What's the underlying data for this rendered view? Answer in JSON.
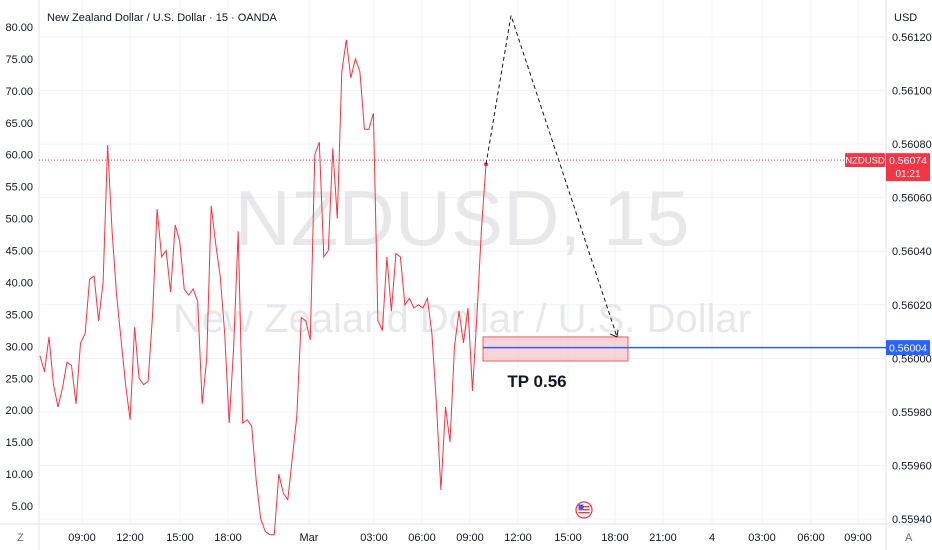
{
  "chart_title": "New Zealand Dollar / U.S. Dollar · 15 · OANDA",
  "currency": "USD",
  "watermark": {
    "symbol": "NZDUSD, 15",
    "name": "New Zealand Dollar / U.S. Dollar"
  },
  "corner_left": "Z",
  "corner_right": "A",
  "colors": {
    "price_line": "#f23645",
    "target_line": "#2962ff",
    "box_fill": "#f7c5cc",
    "grid": "#f0f3fa"
  },
  "last_price": {
    "symbol": "NZDUSD",
    "value": "0.56074",
    "countdown": "01:21",
    "price": 0.56074
  },
  "target": {
    "value": "0.56004",
    "price": 0.56004,
    "label": "TP 0.56"
  },
  "price_axis_labels": [
    "0.56120",
    "0.56100",
    "0.56080",
    "0.56060",
    "0.56040",
    "0.56020",
    "0.56000",
    "0.55980",
    "0.55960",
    "0.55940"
  ],
  "oscillator_axis_labels": [
    "80.00",
    "75.00",
    "70.00",
    "65.00",
    "60.00",
    "55.00",
    "50.00",
    "45.00",
    "40.00",
    "35.00",
    "30.00",
    "25.00",
    "20.00",
    "15.00",
    "10.00",
    "5.00"
  ],
  "time_labels": [
    "09:00",
    "12:00",
    "15:00",
    "18:00",
    "Mar",
    "03:00",
    "06:00",
    "09:00",
    "12:00",
    "15:00",
    "18:00",
    "21:00",
    "4",
    "03:00",
    "06:00",
    "09:00"
  ],
  "chart_data": {
    "type": "line",
    "series": [
      {
        "values": [
          28.5,
          26.0,
          31.5,
          24.0,
          20.5,
          23.5,
          27.5,
          27.0,
          21.0,
          30.5,
          32.0,
          40.5,
          41.0,
          34.0,
          40.0,
          61.5,
          48.0,
          38.0,
          31.0,
          24.0,
          18.5,
          33.0,
          25.0,
          24.0,
          24.5,
          35.0,
          51.5,
          44.0,
          45.0,
          38.5,
          49.0,
          46.5,
          39.0,
          38.0,
          39.0,
          37.0,
          21.0,
          28.0,
          52.0,
          46.0,
          41.0,
          32.0,
          18.0,
          30.0,
          48.0,
          18.0,
          18.5,
          17.5,
          9.0,
          3.0,
          1.0,
          0.5,
          0.5,
          10.0,
          7.0,
          6.0,
          12.5,
          19.0,
          34.5,
          34.0,
          31.0,
          60.0,
          62.0,
          44.0,
          45.0,
          61.0,
          50.0,
          73.0,
          78.0,
          72.0,
          75.0,
          73.0,
          64.0,
          64.0,
          66.5,
          34.0,
          32.5,
          44.0,
          35.5,
          44.5,
          44.0,
          36.5,
          37.5,
          36.0,
          36.5,
          36.0,
          37.5,
          32.0,
          21.0,
          7.5,
          20.5,
          15.0,
          30.0,
          35.5,
          30.5,
          36.0,
          23.0,
          35.0,
          48.5,
          58.5
        ],
        "color": "#f23645"
      }
    ],
    "projection": {
      "from_price": 0.56074,
      "peak_price": 0.56128,
      "end_price": 0.56008,
      "style": "dashed"
    },
    "target_zone": {
      "low_price": 0.55999,
      "high_price": 0.56008
    },
    "price_axis_range": [
      0.5594,
      0.5612
    ],
    "oscillator_axis_range": [
      5.0,
      80.0
    ],
    "grid": true
  }
}
